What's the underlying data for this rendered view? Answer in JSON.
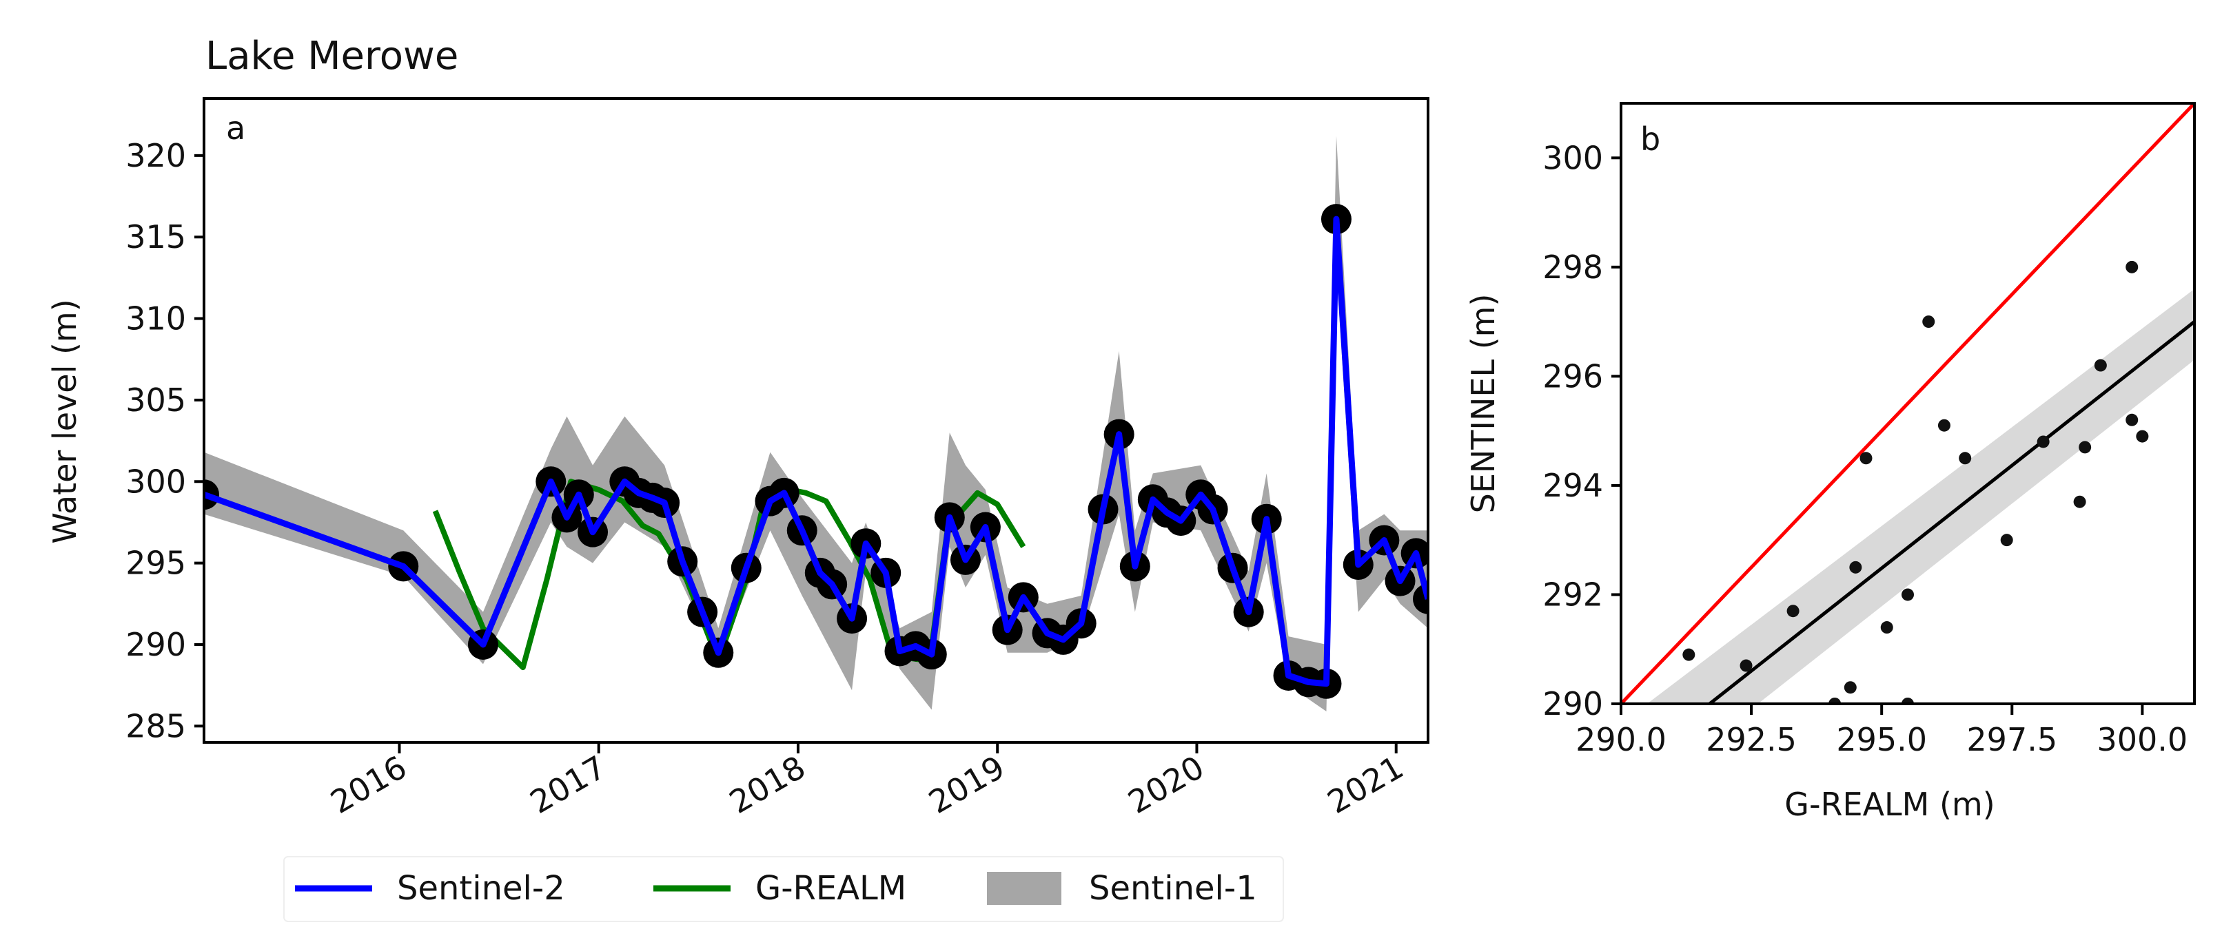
{
  "figure": {
    "title": "Lake Merowe",
    "panel_a_label": "a",
    "panel_b_label": "b"
  },
  "legend": {
    "items": [
      {
        "label": "Sentinel-2",
        "color": "#0000ff",
        "kind": "line"
      },
      {
        "label": "G-REALM",
        "color": "#008000",
        "kind": "line"
      },
      {
        "label": "Sentinel-1",
        "color": "#a6a6a6",
        "kind": "patch"
      }
    ]
  },
  "chart_data": [
    {
      "type": "line",
      "panel": "a",
      "title": "Lake Merowe",
      "xlabel": "",
      "ylabel": "Water level (m)",
      "xlim": [
        2015.02,
        2021.16
      ],
      "ylim": [
        284,
        323.5
      ],
      "xticks": [
        2016,
        2017,
        2018,
        2019,
        2020,
        2021
      ],
      "xtick_labels": [
        "2016",
        "2017",
        "2018",
        "2019",
        "2020",
        "2021"
      ],
      "yticks": [
        285,
        290,
        295,
        300,
        305,
        310,
        315,
        320
      ],
      "ytick_labels": [
        "285",
        "290",
        "295",
        "300",
        "305",
        "310",
        "315",
        "320"
      ],
      "grid": false,
      "legend_position": "below",
      "series": [
        {
          "name": "Sentinel-2",
          "color": "#0000ff",
          "markers": "black circles",
          "x": [
            2015.02,
            2016.02,
            2016.42,
            2016.76,
            2016.84,
            2016.9,
            2016.97,
            2017.13,
            2017.2,
            2017.27,
            2017.33,
            2017.42,
            2017.52,
            2017.6,
            2017.74,
            2017.86,
            2017.93,
            2018.02,
            2018.11,
            2018.17,
            2018.27,
            2018.34,
            2018.44,
            2018.51,
            2018.59,
            2018.67,
            2018.76,
            2018.84,
            2018.94,
            2019.05,
            2019.13,
            2019.25,
            2019.33,
            2019.42,
            2019.53,
            2019.61,
            2019.69,
            2019.78,
            2019.85,
            2019.92,
            2020.02,
            2020.08,
            2020.18,
            2020.26,
            2020.35,
            2020.46,
            2020.56,
            2020.65,
            2020.7,
            2020.81,
            2020.94,
            2021.02,
            2021.1,
            2021.16
          ],
          "y": [
            299.2,
            294.8,
            290.0,
            300.0,
            297.8,
            299.2,
            296.9,
            300.0,
            299.3,
            299.0,
            298.7,
            295.1,
            292.0,
            289.5,
            294.7,
            298.8,
            299.3,
            297.0,
            294.4,
            293.7,
            291.6,
            296.2,
            294.4,
            289.6,
            289.9,
            289.4,
            297.8,
            295.2,
            297.2,
            290.9,
            292.9,
            290.7,
            290.3,
            291.3,
            298.3,
            302.9,
            294.8,
            298.9,
            298.1,
            297.6,
            299.2,
            298.3,
            294.7,
            292.0,
            297.7,
            288.1,
            287.7,
            287.6,
            316.1,
            294.9,
            296.4,
            293.9,
            295.6,
            292.8
          ]
        },
        {
          "name": "G-REALM",
          "color": "#008000",
          "x": [
            2016.18,
            2016.3,
            2016.42,
            2016.62,
            2016.74,
            2016.86,
            2017.0,
            2017.12,
            2017.22,
            2017.3,
            2017.44,
            2017.6,
            2017.74,
            2017.82,
            2017.92,
            2018.04,
            2018.14,
            2018.26,
            2018.36,
            2018.48,
            2018.54,
            2018.66,
            2018.76,
            2018.82,
            2018.9,
            2019.0,
            2019.13
          ],
          "y": [
            298.2,
            294.5,
            291.0,
            288.6,
            294.0,
            300.0,
            299.5,
            298.8,
            297.3,
            296.8,
            294.0,
            289.0,
            294.0,
            298.3,
            299.6,
            299.3,
            298.8,
            296.3,
            294.0,
            289.0,
            289.2,
            289.0,
            298.0,
            298.2,
            299.3,
            298.6,
            296.0
          ]
        },
        {
          "name": "Sentinel-1",
          "type": "area",
          "color": "#a6a6a6",
          "x": [
            2015.02,
            2016.02,
            2016.42,
            2016.76,
            2016.84,
            2016.97,
            2017.13,
            2017.33,
            2017.6,
            2017.86,
            2018.02,
            2018.27,
            2018.34,
            2018.51,
            2018.67,
            2018.76,
            2018.84,
            2018.94,
            2019.05,
            2019.25,
            2019.42,
            2019.61,
            2019.69,
            2019.78,
            2020.02,
            2020.26,
            2020.35,
            2020.46,
            2020.65,
            2020.7,
            2020.81,
            2020.94,
            2021.02,
            2021.16
          ],
          "lower": [
            298.0,
            294.2,
            288.8,
            297.5,
            296.0,
            295.0,
            297.5,
            296.0,
            289.0,
            297.0,
            293.0,
            287.2,
            294.5,
            288.5,
            286.0,
            296.0,
            293.5,
            295.5,
            289.5,
            289.5,
            290.5,
            298.0,
            292.0,
            297.5,
            297.0,
            290.8,
            295.0,
            287.5,
            285.9,
            313.0,
            292.0,
            294.0,
            292.5,
            291.0
          ],
          "upper": [
            301.8,
            297.0,
            292.0,
            302.0,
            304.0,
            301.0,
            304.0,
            301.0,
            291.0,
            301.8,
            299.0,
            295.0,
            297.5,
            291.0,
            292.0,
            303.0,
            301.0,
            299.5,
            293.5,
            292.5,
            293.0,
            308.0,
            297.0,
            300.5,
            301.0,
            294.5,
            300.5,
            290.5,
            290.0,
            321.2,
            297.0,
            298.0,
            297.0,
            297.0
          ]
        }
      ]
    },
    {
      "type": "scatter",
      "panel": "b",
      "title": "",
      "xlabel": "G-REALM (m)",
      "ylabel": "SENTINEL (m)",
      "xlim": [
        290.0,
        301.0
      ],
      "ylim": [
        290.0,
        301.0
      ],
      "xticks": [
        290.0,
        292.5,
        295.0,
        297.5,
        300.0
      ],
      "xtick_labels": [
        "290.0",
        "292.5",
        "295.0",
        "297.5",
        "300.0"
      ],
      "yticks": [
        290,
        292,
        294,
        296,
        298,
        300
      ],
      "ytick_labels": [
        "290",
        "292",
        "294",
        "296",
        "298",
        "300"
      ],
      "grid": false,
      "points": [
        [
          291.3,
          290.9
        ],
        [
          292.4,
          290.7
        ],
        [
          293.3,
          291.7
        ],
        [
          294.1,
          290.0
        ],
        [
          294.4,
          290.3
        ],
        [
          294.5,
          292.5
        ],
        [
          294.7,
          294.5
        ],
        [
          295.1,
          291.4
        ],
        [
          295.5,
          292.0
        ],
        [
          295.5,
          290.0
        ],
        [
          295.9,
          297.0
        ],
        [
          296.2,
          295.1
        ],
        [
          296.6,
          294.5
        ],
        [
          297.4,
          293.0
        ],
        [
          298.1,
          294.8
        ],
        [
          298.8,
          293.7
        ],
        [
          298.9,
          294.7
        ],
        [
          299.2,
          296.2
        ],
        [
          299.8,
          298.0
        ],
        [
          299.8,
          295.2
        ],
        [
          300.0,
          294.9
        ]
      ],
      "point_color": "#111111",
      "lines": [
        {
          "name": "1:1 line",
          "color": "#ff0000",
          "x": [
            290.0,
            301.0
          ],
          "y": [
            290.0,
            301.0
          ]
        },
        {
          "name": "regression fit",
          "color": "#000000",
          "x": [
            291.7,
            301.0
          ],
          "y": [
            290.0,
            297.0
          ]
        }
      ],
      "confidence_band": {
        "color": "#d9d9d9",
        "x": [
          290.5,
          301.0
        ],
        "lower_at_x": [
          288.4,
          296.3
        ],
        "upper_at_x": [
          290.0,
          297.6
        ]
      }
    }
  ]
}
